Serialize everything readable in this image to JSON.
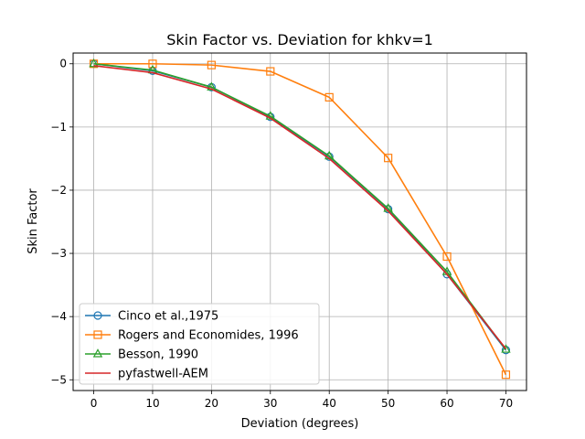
{
  "chart_data": {
    "type": "line",
    "title": "Skin Factor vs. Deviation for khkv=1",
    "xlabel": "Deviation (degrees)",
    "ylabel": "Skin Factor",
    "xlim": [
      -3.5,
      73.5
    ],
    "ylim": [
      -5.17,
      0.17
    ],
    "xticks": [
      0,
      10,
      20,
      30,
      40,
      50,
      60,
      70
    ],
    "yticks": [
      0,
      -1,
      -2,
      -3,
      -4,
      -5
    ],
    "grid": true,
    "legend_position": "lower-left",
    "x": [
      0,
      10,
      20,
      30,
      40,
      50,
      60,
      70
    ],
    "series": [
      {
        "name": "Cinco et al.,1975",
        "color": "#1f77b4",
        "marker": "circle",
        "values": [
          0.0,
          -0.11,
          -0.37,
          -0.84,
          -1.47,
          -2.3,
          -3.33,
          -4.53
        ]
      },
      {
        "name": "Rogers and Economides, 1996",
        "color": "#ff7f0e",
        "marker": "square",
        "values": [
          0.0,
          0.0,
          -0.02,
          -0.12,
          -0.53,
          -1.49,
          -3.05,
          -4.92
        ]
      },
      {
        "name": "Besson, 1990",
        "color": "#2ca02c",
        "marker": "triangle",
        "values": [
          0.0,
          -0.1,
          -0.37,
          -0.83,
          -1.46,
          -2.29,
          -3.29,
          -4.52
        ]
      },
      {
        "name": "pyfastwell-AEM",
        "color": "#d62728",
        "marker": "none",
        "values": [
          -0.03,
          -0.14,
          -0.4,
          -0.86,
          -1.5,
          -2.33,
          -3.33,
          -4.51
        ]
      }
    ]
  }
}
